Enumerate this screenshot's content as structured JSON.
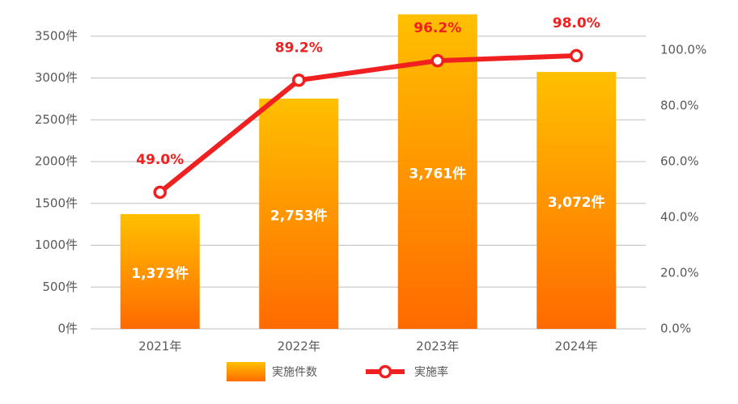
{
  "chart_data": {
    "type": "bar",
    "categories": [
      "2021年",
      "2022年",
      "2023年",
      "2024年"
    ],
    "series": [
      {
        "name": "実施件数",
        "type": "bar",
        "colors": [
          "#ffc000",
          "#ff6a00"
        ],
        "values": [
          1373,
          2753,
          3761,
          3072
        ],
        "value_labels": [
          "1,373件",
          "2,753件",
          "3,761件",
          "3,072件"
        ]
      },
      {
        "name": "実施率",
        "type": "line",
        "axis": "y2",
        "color": "#f02020",
        "values": [
          49.0,
          89.2,
          96.2,
          98.0
        ],
        "value_labels": [
          "49.0%",
          "89.2%",
          "96.2%",
          "98.0%"
        ]
      }
    ],
    "ylim": [
      0,
      4000
    ],
    "yticks": [
      {
        "value": 0,
        "label": "0件"
      },
      {
        "value": 500,
        "label": "500件"
      },
      {
        "value": 1000,
        "label": "1000件"
      },
      {
        "value": 1500,
        "label": "1500件"
      },
      {
        "value": 2000,
        "label": "2000件"
      },
      {
        "value": 2500,
        "label": "2500件"
      },
      {
        "value": 3000,
        "label": "3000件"
      },
      {
        "value": 3500,
        "label": "3500件"
      }
    ],
    "y2lim": [
      0,
      120
    ],
    "y2ticks": [
      {
        "value": 0,
        "label": "0.0%"
      },
      {
        "value": 20,
        "label": "20.0%"
      },
      {
        "value": 40,
        "label": "40.0%"
      },
      {
        "value": 60,
        "label": "60.0%"
      },
      {
        "value": 80,
        "label": "80.0%"
      },
      {
        "value": 100,
        "label": "100.0%"
      }
    ],
    "grid": true,
    "legend": "bottom"
  }
}
